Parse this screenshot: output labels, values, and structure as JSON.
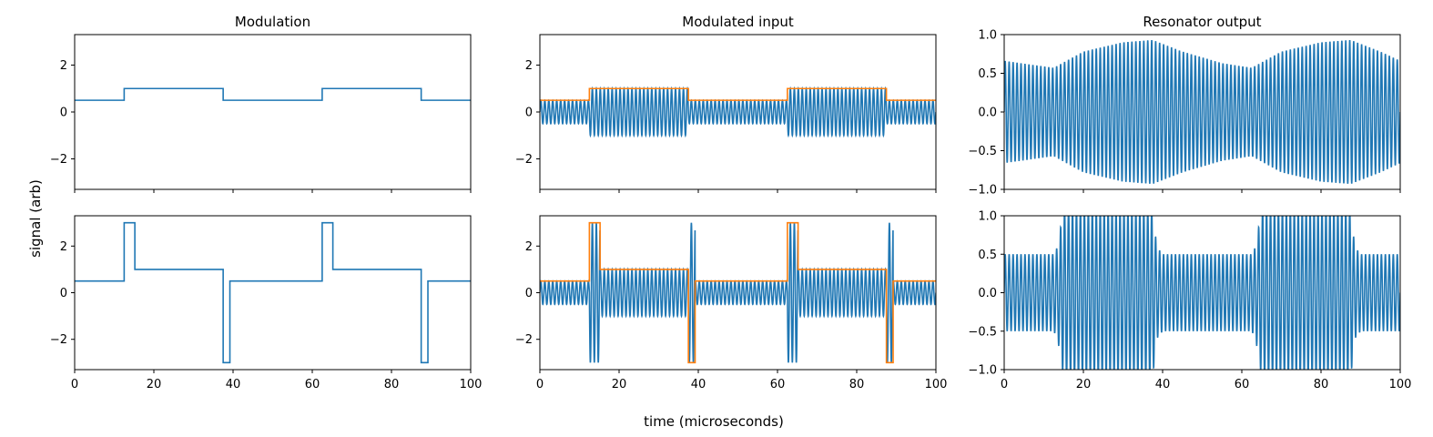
{
  "figure": {
    "ylabel": "signal (arb)",
    "xlabel": "time (microseconds)"
  },
  "colors": {
    "signal": "#1f77b4",
    "envelope": "#ff7f0e",
    "axis": "#000000"
  },
  "chart_data": [
    {
      "id": "top-modulation",
      "type": "line",
      "title": "Modulation",
      "xlim": [
        0,
        100
      ],
      "ylim": [
        -3.3,
        3.3
      ],
      "xticks": [
        0,
        20,
        40,
        60,
        80,
        100
      ],
      "show_xticklabels": false,
      "yticks": [
        -2,
        0,
        2
      ],
      "ytick_labels": [
        "−2",
        "0",
        "2"
      ],
      "grid": false,
      "series": [
        {
          "kind": "step",
          "color": "#1f77b4",
          "points": [
            [
              0,
              0.5
            ],
            [
              12.5,
              0.5
            ],
            [
              12.5,
              1
            ],
            [
              37.5,
              1
            ],
            [
              37.5,
              0.5
            ],
            [
              62.5,
              0.5
            ],
            [
              62.5,
              1
            ],
            [
              87.5,
              1
            ],
            [
              87.5,
              0.5
            ],
            [
              100,
              0.5
            ]
          ]
        }
      ]
    },
    {
      "id": "top-modulated-input",
      "type": "line",
      "title": "Modulated input",
      "xlim": [
        0,
        100
      ],
      "ylim": [
        -3.3,
        3.3
      ],
      "xticks": [
        0,
        20,
        40,
        60,
        80,
        100
      ],
      "show_xticklabels": false,
      "yticks": [
        -2,
        0,
        2
      ],
      "ytick_labels": [
        "−2",
        "0",
        "2"
      ],
      "grid": false,
      "series": [
        {
          "kind": "carrier",
          "color": "#1f77b4",
          "cycles_per_unit": 1.0,
          "envelope": [
            [
              0,
              12.5,
              0.5
            ],
            [
              12.5,
              37.5,
              1
            ],
            [
              37.5,
              62.5,
              0.5
            ],
            [
              62.5,
              87.5,
              1
            ],
            [
              87.5,
              100,
              0.5
            ]
          ]
        },
        {
          "kind": "step",
          "color": "#ff7f0e",
          "points": [
            [
              0,
              0.5
            ],
            [
              12.5,
              0.5
            ],
            [
              12.5,
              1
            ],
            [
              37.5,
              1
            ],
            [
              37.5,
              0.5
            ],
            [
              62.5,
              0.5
            ],
            [
              62.5,
              1
            ],
            [
              87.5,
              1
            ],
            [
              87.5,
              0.5
            ],
            [
              100,
              0.5
            ]
          ]
        }
      ]
    },
    {
      "id": "top-resonator-output",
      "type": "line",
      "title": "Resonator output",
      "xlim": [
        0,
        100
      ],
      "ylim": [
        -1.0,
        1.0
      ],
      "xticks": [
        0,
        20,
        40,
        60,
        80,
        100
      ],
      "show_xticklabels": false,
      "yticks": [
        -1.0,
        -0.5,
        0.0,
        0.5,
        1.0
      ],
      "ytick_labels": [
        "−1.0",
        "−0.5",
        "0.0",
        "0.5",
        "1.0"
      ],
      "grid": false,
      "series": [
        {
          "kind": "carrier",
          "color": "#1f77b4",
          "cycles_per_unit": 1.0,
          "amplitude_points": [
            [
              0,
              0.66
            ],
            [
              12.5,
              0.57
            ],
            [
              20,
              0.78
            ],
            [
              30,
              0.9
            ],
            [
              37.5,
              0.93
            ],
            [
              45,
              0.78
            ],
            [
              55,
              0.63
            ],
            [
              62.5,
              0.57
            ],
            [
              70,
              0.78
            ],
            [
              80,
              0.9
            ],
            [
              87.5,
              0.93
            ],
            [
              95,
              0.78
            ],
            [
              100,
              0.66
            ]
          ]
        }
      ]
    },
    {
      "id": "bottom-modulation",
      "type": "line",
      "title": "",
      "xlim": [
        0,
        100
      ],
      "ylim": [
        -3.3,
        3.3
      ],
      "xticks": [
        0,
        20,
        40,
        60,
        80,
        100
      ],
      "xtick_labels": [
        "0",
        "20",
        "40",
        "60",
        "80",
        "100"
      ],
      "show_xticklabels": true,
      "yticks": [
        -2,
        0,
        2
      ],
      "ytick_labels": [
        "−2",
        "0",
        "2"
      ],
      "grid": false,
      "series": [
        {
          "kind": "step",
          "color": "#1f77b4",
          "points": [
            [
              0,
              0.5
            ],
            [
              12.5,
              0.5
            ],
            [
              12.5,
              3
            ],
            [
              15.2,
              3
            ],
            [
              15.2,
              1
            ],
            [
              37.5,
              1
            ],
            [
              37.5,
              -3
            ],
            [
              39.2,
              -3
            ],
            [
              39.2,
              0.5
            ],
            [
              62.5,
              0.5
            ],
            [
              62.5,
              3
            ],
            [
              65.2,
              3
            ],
            [
              65.2,
              1
            ],
            [
              87.5,
              1
            ],
            [
              87.5,
              -3
            ],
            [
              89.2,
              -3
            ],
            [
              89.2,
              0.5
            ],
            [
              100,
              0.5
            ]
          ]
        }
      ]
    },
    {
      "id": "bottom-modulated-input",
      "type": "line",
      "title": "",
      "xlim": [
        0,
        100
      ],
      "ylim": [
        -3.3,
        3.3
      ],
      "xticks": [
        0,
        20,
        40,
        60,
        80,
        100
      ],
      "xtick_labels": [
        "0",
        "20",
        "40",
        "60",
        "80",
        "100"
      ],
      "show_xticklabels": true,
      "yticks": [
        -2,
        0,
        2
      ],
      "ytick_labels": [
        "−2",
        "0",
        "2"
      ],
      "grid": false,
      "series": [
        {
          "kind": "carrier",
          "color": "#1f77b4",
          "cycles_per_unit": 1.0,
          "envelope": [
            [
              0,
              12.5,
              0.5
            ],
            [
              12.5,
              15.2,
              3
            ],
            [
              15.2,
              37.5,
              1
            ],
            [
              37.5,
              39.2,
              3
            ],
            [
              39.2,
              62.5,
              0.5
            ],
            [
              62.5,
              65.2,
              3
            ],
            [
              65.2,
              87.5,
              1
            ],
            [
              87.5,
              89.2,
              3
            ],
            [
              89.2,
              100,
              0.5
            ]
          ]
        },
        {
          "kind": "step",
          "color": "#ff7f0e",
          "points": [
            [
              0,
              0.5
            ],
            [
              12.5,
              0.5
            ],
            [
              12.5,
              3
            ],
            [
              15.2,
              3
            ],
            [
              15.2,
              1
            ],
            [
              37.5,
              1
            ],
            [
              37.5,
              -3
            ],
            [
              39.2,
              -3
            ],
            [
              39.2,
              0.5
            ],
            [
              62.5,
              0.5
            ],
            [
              62.5,
              3
            ],
            [
              65.2,
              3
            ],
            [
              65.2,
              1
            ],
            [
              87.5,
              1
            ],
            [
              87.5,
              -3
            ],
            [
              89.2,
              -3
            ],
            [
              89.2,
              0.5
            ],
            [
              100,
              0.5
            ]
          ]
        }
      ]
    },
    {
      "id": "bottom-resonator-output",
      "type": "line",
      "title": "",
      "xlim": [
        0,
        100
      ],
      "ylim": [
        -1.0,
        1.0
      ],
      "xticks": [
        0,
        20,
        40,
        60,
        80,
        100
      ],
      "xtick_labels": [
        "0",
        "20",
        "40",
        "60",
        "80",
        "100"
      ],
      "show_xticklabels": true,
      "yticks": [
        -1.0,
        -0.5,
        0.0,
        0.5,
        1.0
      ],
      "ytick_labels": [
        "−1.0",
        "−0.5",
        "0.0",
        "0.5",
        "1.0"
      ],
      "grid": false,
      "series": [
        {
          "kind": "carrier",
          "color": "#1f77b4",
          "cycles_per_unit": 1.0,
          "amplitude_points": [
            [
              0,
              0.5
            ],
            [
              12.5,
              0.5
            ],
            [
              13.5,
              0.6
            ],
            [
              15,
              1.1
            ],
            [
              37.5,
              1.1
            ],
            [
              38.5,
              0.6
            ],
            [
              40,
              0.5
            ],
            [
              62.5,
              0.5
            ],
            [
              63.5,
              0.6
            ],
            [
              65,
              1.1
            ],
            [
              87.5,
              1.1
            ],
            [
              88.5,
              0.6
            ],
            [
              90,
              0.5
            ],
            [
              100,
              0.5
            ]
          ]
        }
      ]
    }
  ]
}
